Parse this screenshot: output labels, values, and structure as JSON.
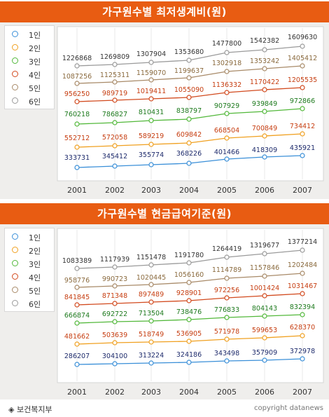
{
  "chart_data": [
    {
      "type": "line",
      "title": "가구원수별 최저생계비(원)",
      "categories": [
        "2001",
        "2002",
        "2003",
        "2004",
        "2005",
        "2006",
        "2007"
      ],
      "series": [
        {
          "name": "1인",
          "color": "#3a8fd8",
          "values": [
            333731,
            345412,
            355774,
            368226,
            401466,
            418309,
            435921
          ],
          "label_color": "#1d2a6b"
        },
        {
          "name": "2인",
          "color": "#f0a020",
          "values": [
            552712,
            572058,
            589219,
            609842,
            668504,
            700849,
            734412
          ],
          "label_color": "#c63d10"
        },
        {
          "name": "3인",
          "color": "#52b83a",
          "values": [
            760218,
            786827,
            810431,
            838797,
            907929,
            939849,
            972866
          ],
          "label_color": "#1e7a1e"
        },
        {
          "name": "4인",
          "color": "#d24a1e",
          "values": [
            956250,
            989719,
            1019411,
            1055090,
            1136332,
            1170422,
            1205535
          ],
          "label_color": "#c63d10"
        },
        {
          "name": "5인",
          "color": "#a88a68",
          "values": [
            1087256,
            1125311,
            1159070,
            1199637,
            1302918,
            1353242,
            1405412
          ],
          "label_color": "#8a6a3e"
        },
        {
          "name": "6인",
          "color": "#9a9a9a",
          "values": [
            1226868,
            1269809,
            1307904,
            1353680,
            1477800,
            1542382,
            1609630
          ],
          "label_color": "#333333"
        }
      ]
    },
    {
      "type": "line",
      "title": "가구원수별 현금급여기준(원)",
      "categories": [
        "2001",
        "2002",
        "2003",
        "2004",
        "2005",
        "2006",
        "2007"
      ],
      "series": [
        {
          "name": "1인",
          "color": "#3a8fd8",
          "values": [
            286207,
            304100,
            313224,
            324186,
            343498,
            357909,
            372978
          ],
          "label_color": "#1d2a6b"
        },
        {
          "name": "2인",
          "color": "#f0a020",
          "values": [
            481662,
            503639,
            518749,
            536905,
            571978,
            599653,
            628370
          ],
          "label_color": "#c63d10"
        },
        {
          "name": "3인",
          "color": "#52b83a",
          "values": [
            666874,
            692722,
            713504,
            738476,
            776833,
            804143,
            832394
          ],
          "label_color": "#1e7a1e"
        },
        {
          "name": "4인",
          "color": "#d24a1e",
          "values": [
            841845,
            871348,
            897489,
            928901,
            972256,
            1001424,
            1031467
          ],
          "label_color": "#c63d10"
        },
        {
          "name": "5인",
          "color": "#a88a68",
          "values": [
            958776,
            990723,
            1020445,
            1056160,
            1114789,
            1157846,
            1202484
          ],
          "label_color": "#8a6a3e"
        },
        {
          "name": "6인",
          "color": "#9a9a9a",
          "values": [
            1083389,
            1117939,
            1151478,
            1191780,
            1264419,
            1319677,
            1377214
          ],
          "label_color": "#333333"
        }
      ]
    }
  ],
  "footer": {
    "source": "◈ 보건복지부",
    "copyright": "copyright datanews"
  }
}
